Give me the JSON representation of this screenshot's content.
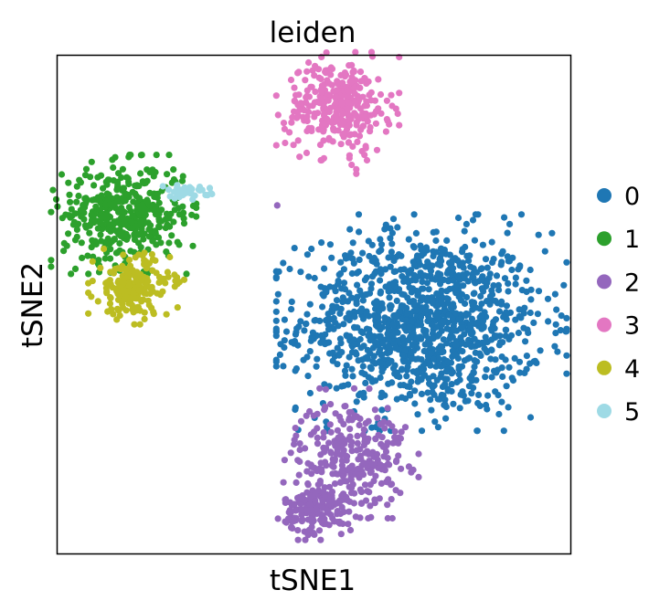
{
  "chart_data": {
    "type": "scatter",
    "title": "leiden",
    "xlabel": "tSNE1",
    "ylabel": "tSNE2",
    "xlim": [
      -55,
      55
    ],
    "ylim": [
      -55,
      55
    ],
    "grid": false,
    "ticks_shown": false,
    "legend_position": "right",
    "point_count_note": "clusters sampled",
    "series": [
      {
        "name": "0",
        "color": "#1f77b4",
        "clusters": [
          {
            "cx": 23,
            "cy": -4,
            "sx": 13,
            "sy": 10,
            "n": 1200
          }
        ],
        "extra_points": [
          [
            3,
            -43
          ],
          [
            -6,
            -6
          ],
          [
            17,
            19
          ]
        ]
      },
      {
        "name": "1",
        "color": "#2ca02c",
        "clusters": [
          {
            "cx": -41,
            "cy": 20,
            "sx": 6.5,
            "sy": 5.5,
            "n": 420
          }
        ],
        "extra_points": [
          [
            -30,
            21
          ],
          [
            -29,
            20
          ],
          [
            -28,
            18
          ]
        ]
      },
      {
        "name": "2",
        "color": "#9467bd",
        "clusters": [
          {
            "cx": 8,
            "cy": -33,
            "sx": 6,
            "sy": 6,
            "n": 260
          },
          {
            "cx": 1,
            "cy": -45,
            "sx": 3.8,
            "sy": 3,
            "n": 170
          }
        ],
        "extra_points": [
          [
            -8,
            22
          ],
          [
            13,
            -44
          ],
          [
            14,
            -43
          ]
        ]
      },
      {
        "name": "3",
        "color": "#e377c2",
        "clusters": [
          {
            "cx": 5,
            "cy": 44,
            "sx": 5.5,
            "sy": 5,
            "n": 320
          }
        ],
        "extra_points": [
          [
            9,
            30
          ],
          [
            9,
            29
          ],
          [
            8,
            31
          ]
        ]
      },
      {
        "name": "4",
        "color": "#bcbd22",
        "clusters": [
          {
            "cx": -39,
            "cy": 4,
            "sx": 4,
            "sy": 3.5,
            "n": 200
          }
        ],
        "extra_points": [
          [
            -29,
            5
          ],
          [
            -28,
            5.5
          ],
          [
            -30,
            4
          ]
        ]
      },
      {
        "name": "5",
        "color": "#9edae5",
        "clusters": [
          {
            "cx": -27.5,
            "cy": 25,
            "sx": 2.5,
            "sy": 0.7,
            "n": 40
          }
        ],
        "extra_points": []
      }
    ]
  }
}
